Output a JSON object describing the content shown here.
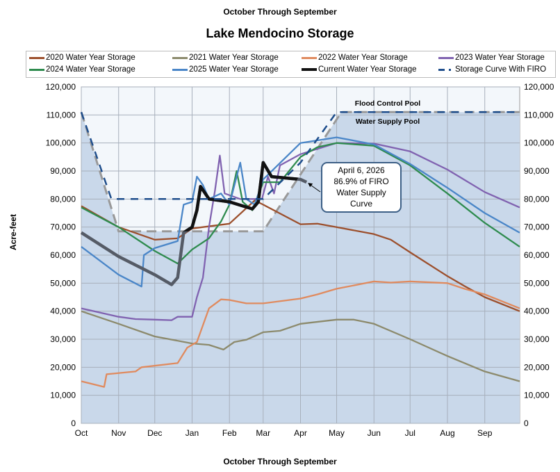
{
  "header": {
    "supertitle": "October Through September",
    "title": "Lake Mendocino Storage"
  },
  "chart_data": {
    "type": "line",
    "title": "Lake Mendocino Storage",
    "subtitle": "October Through September",
    "xlabel": "October Through September",
    "ylabel": "Acre-feet",
    "x_ticks": [
      "Oct",
      "Nov",
      "Dec",
      "Jan",
      "Feb",
      "Mar",
      "Apr",
      "May",
      "Jun",
      "Jul",
      "Aug",
      "Sep"
    ],
    "y_ticks": [
      "0",
      "10,000",
      "20,000",
      "30,000",
      "40,000",
      "50,000",
      "60,000",
      "70,000",
      "80,000",
      "90,000",
      "100,000",
      "110,000",
      "120,000"
    ],
    "ylim": [
      0,
      120000
    ],
    "grid": true,
    "legend_position": "top",
    "x_format": "MM-DD (water year, Oct 1 to Sep 30)",
    "region_labels": {
      "upper": "Flood Control Pool",
      "lower": "Water Supply Pool"
    },
    "annotation": {
      "lines": [
        "April 6, 2026",
        "86.9% of FIRO",
        "Water Supply",
        "Curve"
      ],
      "points_to": [
        "04-06",
        86000
      ]
    },
    "rule_curve": {
      "color": "#999999",
      "points": [
        [
          "10-01",
          111000
        ],
        [
          "11-01",
          68500
        ],
        [
          "03-01",
          68500
        ],
        [
          "05-05",
          111000
        ],
        [
          "09-30",
          111000
        ]
      ]
    },
    "series": [
      {
        "name": "2020 Water Year Storage",
        "color": "#9c4f2c",
        "points": [
          [
            "10-01",
            77500
          ],
          [
            "11-01",
            70000
          ],
          [
            "12-01",
            65500
          ],
          [
            "12-20",
            66000
          ],
          [
            "01-01",
            69500
          ],
          [
            "02-01",
            71200
          ],
          [
            "02-22",
            79500
          ],
          [
            "03-01",
            78000
          ],
          [
            "04-01",
            71000
          ],
          [
            "04-15",
            71200
          ],
          [
            "05-01",
            70000
          ],
          [
            "06-01",
            67500
          ],
          [
            "06-15",
            65500
          ],
          [
            "07-01",
            61000
          ],
          [
            "08-01",
            52500
          ],
          [
            "08-15",
            49000
          ],
          [
            "09-01",
            45000
          ],
          [
            "09-30",
            40000
          ]
        ]
      },
      {
        "name": "2021 Water Year Storage",
        "color": "#8c8a6c",
        "points": [
          [
            "10-01",
            40000
          ],
          [
            "11-01",
            35500
          ],
          [
            "12-01",
            31000
          ],
          [
            "01-01",
            28500
          ],
          [
            "01-15",
            28000
          ],
          [
            "01-27",
            26300
          ],
          [
            "02-05",
            29000
          ],
          [
            "02-15",
            29800
          ],
          [
            "03-01",
            32500
          ],
          [
            "03-15",
            33000
          ],
          [
            "04-01",
            35500
          ],
          [
            "05-01",
            37000
          ],
          [
            "05-15",
            37000
          ],
          [
            "06-01",
            35500
          ],
          [
            "07-01",
            30000
          ],
          [
            "08-01",
            24000
          ],
          [
            "09-01",
            18500
          ],
          [
            "09-30",
            15000
          ]
        ]
      },
      {
        "name": "2022 Water Year Storage",
        "color": "#e08a5e",
        "points": [
          [
            "10-01",
            15000
          ],
          [
            "10-20",
            13000
          ],
          [
            "10-22",
            17500
          ],
          [
            "11-15",
            18500
          ],
          [
            "11-20",
            20000
          ],
          [
            "12-20",
            21500
          ],
          [
            "12-28",
            27000
          ],
          [
            "01-05",
            29000
          ],
          [
            "01-15",
            41000
          ],
          [
            "01-25",
            44200
          ],
          [
            "02-01",
            44000
          ],
          [
            "02-15",
            42800
          ],
          [
            "03-01",
            42800
          ],
          [
            "04-01",
            44500
          ],
          [
            "04-15",
            46000
          ],
          [
            "05-01",
            48000
          ],
          [
            "06-01",
            50600
          ],
          [
            "06-15",
            50200
          ],
          [
            "07-01",
            50600
          ],
          [
            "08-01",
            50000
          ],
          [
            "08-15",
            48000
          ],
          [
            "09-01",
            46000
          ],
          [
            "09-30",
            41000
          ]
        ]
      },
      {
        "name": "2023 Water Year Storage",
        "color": "#8062b0",
        "points": [
          [
            "10-01",
            41000
          ],
          [
            "11-01",
            38000
          ],
          [
            "11-15",
            37200
          ],
          [
            "12-01",
            37000
          ],
          [
            "12-15",
            36800
          ],
          [
            "12-20",
            38000
          ],
          [
            "01-01",
            38000
          ],
          [
            "01-05",
            45000
          ],
          [
            "01-10",
            52000
          ],
          [
            "01-15",
            70000
          ],
          [
            "01-20",
            83000
          ],
          [
            "01-24",
            95500
          ],
          [
            "01-28",
            82000
          ],
          [
            "02-10",
            80000
          ],
          [
            "02-28",
            80000
          ],
          [
            "03-05",
            88000
          ],
          [
            "03-10",
            82000
          ],
          [
            "03-15",
            92000
          ],
          [
            "04-01",
            96000
          ],
          [
            "05-01",
            100000
          ],
          [
            "06-01",
            99800
          ],
          [
            "07-01",
            97000
          ],
          [
            "08-01",
            90500
          ],
          [
            "09-01",
            82500
          ],
          [
            "09-30",
            77000
          ]
        ]
      },
      {
        "name": "2024 Water Year Storage",
        "color": "#2e8b4e",
        "points": [
          [
            "10-01",
            77000
          ],
          [
            "11-01",
            70000
          ],
          [
            "12-01",
            61500
          ],
          [
            "12-20",
            57000
          ],
          [
            "01-01",
            62000
          ],
          [
            "01-15",
            66000
          ],
          [
            "01-25",
            72000
          ],
          [
            "02-01",
            78000
          ],
          [
            "02-07",
            90000
          ],
          [
            "02-12",
            79000
          ],
          [
            "02-20",
            76000
          ],
          [
            "03-01",
            86000
          ],
          [
            "03-15",
            86000
          ],
          [
            "04-01",
            95000
          ],
          [
            "04-15",
            98500
          ],
          [
            "05-01",
            100000
          ],
          [
            "06-01",
            99000
          ],
          [
            "07-01",
            92000
          ],
          [
            "08-01",
            82000
          ],
          [
            "09-01",
            71500
          ],
          [
            "09-30",
            63000
          ]
        ]
      },
      {
        "name": "2025 Water Year Storage",
        "color": "#4a86c8",
        "points": [
          [
            "10-01",
            63000
          ],
          [
            "11-01",
            53000
          ],
          [
            "11-20",
            48800
          ],
          [
            "11-22",
            60000
          ],
          [
            "12-01",
            62500
          ],
          [
            "12-20",
            65000
          ],
          [
            "12-25",
            78000
          ],
          [
            "01-01",
            79000
          ],
          [
            "01-05",
            88000
          ],
          [
            "01-10",
            85000
          ],
          [
            "01-15",
            80000
          ],
          [
            "01-25",
            82000
          ],
          [
            "02-01",
            78000
          ],
          [
            "02-10",
            93000
          ],
          [
            "02-15",
            80000
          ],
          [
            "02-22",
            78000
          ],
          [
            "03-01",
            87000
          ],
          [
            "04-01",
            100000
          ],
          [
            "05-01",
            102000
          ],
          [
            "06-01",
            99500
          ],
          [
            "07-01",
            92500
          ],
          [
            "08-01",
            84000
          ],
          [
            "09-01",
            75000
          ],
          [
            "09-30",
            68000
          ]
        ]
      },
      {
        "name": "Current Water Year Storage",
        "color": "#111111",
        "points": [
          [
            "10-01",
            68000
          ],
          [
            "11-01",
            59500
          ],
          [
            "12-01",
            53000
          ],
          [
            "12-15",
            49500
          ],
          [
            "12-20",
            52000
          ],
          [
            "12-25",
            68000
          ],
          [
            "01-01",
            70000
          ],
          [
            "01-05",
            76000
          ],
          [
            "01-08",
            84500
          ],
          [
            "01-15",
            80000
          ],
          [
            "02-01",
            79000
          ],
          [
            "02-20",
            76500
          ],
          [
            "02-25",
            79000
          ],
          [
            "03-01",
            93000
          ],
          [
            "03-08",
            88000
          ],
          [
            "04-01",
            87000
          ],
          [
            "04-06",
            86000
          ]
        ]
      },
      {
        "name": "Storage Curve With FIRO",
        "color": "#1f4e8c",
        "points": [
          [
            "10-01",
            111000
          ],
          [
            "10-26",
            80000
          ],
          [
            "03-01",
            80000
          ],
          [
            "04-01",
            93000
          ],
          [
            "05-01",
            111000
          ],
          [
            "09-30",
            111000
          ]
        ]
      }
    ]
  }
}
